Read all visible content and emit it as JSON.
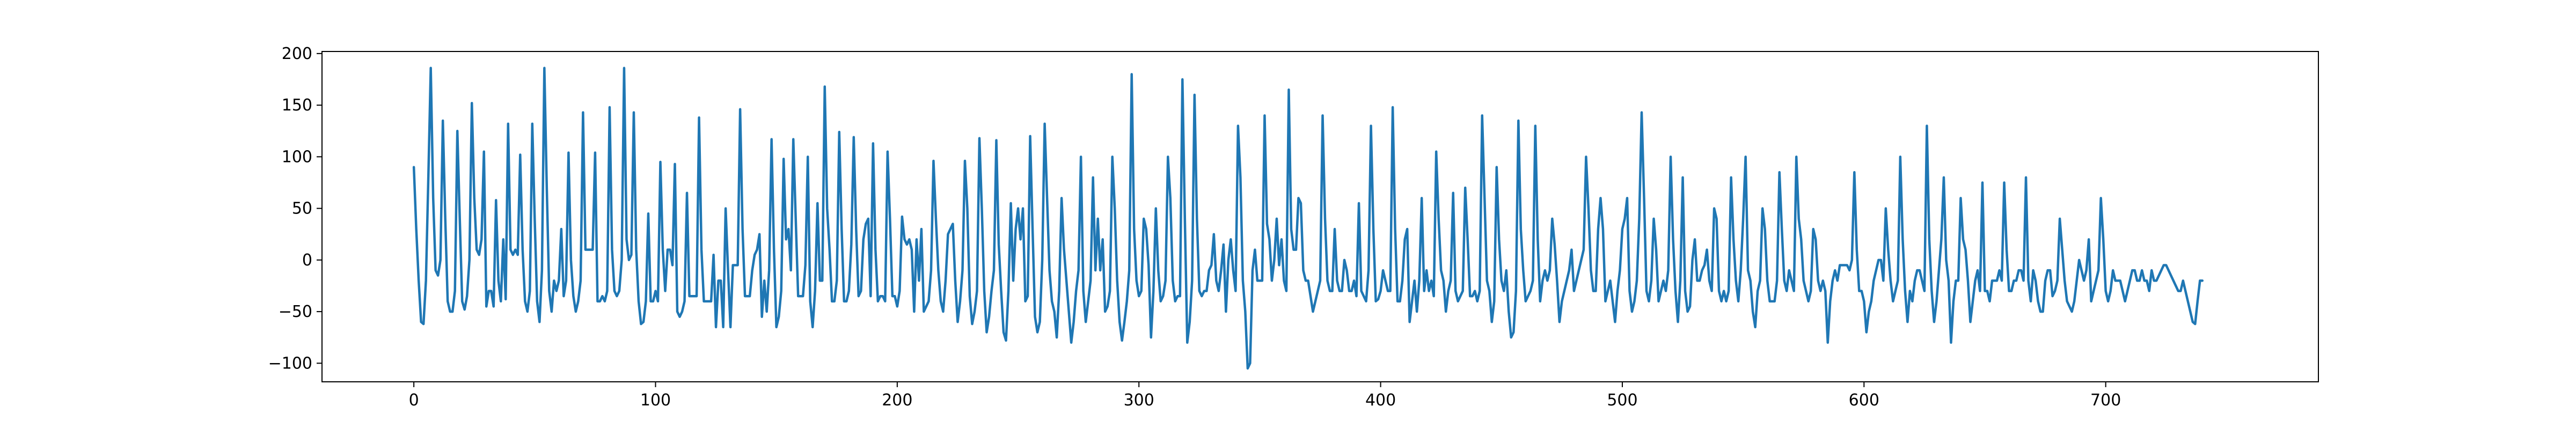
{
  "chart_data": {
    "type": "line",
    "title": "",
    "xlabel": "",
    "ylabel": "",
    "xlim": [
      -38,
      788
    ],
    "ylim": [
      -118,
      202
    ],
    "xticks": [
      0,
      100,
      200,
      300,
      400,
      500,
      600,
      700
    ],
    "yticks": [
      -100,
      -50,
      0,
      50,
      100,
      150,
      200
    ],
    "grid": false,
    "legend": "none",
    "line_color": "#1f77b4",
    "series": [
      {
        "x_start": 0,
        "x_step": 1,
        "values": [
          90,
          30,
          -20,
          -60,
          -62,
          -20,
          80,
          186,
          60,
          -10,
          -15,
          0,
          135,
          40,
          -40,
          -50,
          -50,
          -30,
          125,
          40,
          -40,
          -48,
          -35,
          0,
          152,
          60,
          10,
          5,
          20,
          105,
          -45,
          -30,
          -30,
          -45,
          58,
          -20,
          -40,
          20,
          -38,
          132,
          10,
          5,
          10,
          5,
          102,
          10,
          -40,
          -50,
          -30,
          132,
          40,
          -40,
          -60,
          -10,
          186,
          70,
          -30,
          -50,
          -20,
          -30,
          -20,
          30,
          -35,
          -20,
          104,
          0,
          -35,
          -50,
          -40,
          -20,
          143,
          10,
          10,
          10,
          10,
          104,
          -40,
          -40,
          -35,
          -40,
          -30,
          148,
          10,
          -30,
          -35,
          -30,
          0,
          186,
          20,
          0,
          5,
          143,
          10,
          -40,
          -62,
          -60,
          -40,
          45,
          -40,
          -40,
          -30,
          -40,
          95,
          10,
          -30,
          10,
          10,
          -5,
          93,
          -50,
          -55,
          -50,
          -40,
          65,
          -35,
          -35,
          -35,
          -35,
          138,
          10,
          -40,
          -40,
          -40,
          -40,
          5,
          -65,
          -20,
          -20,
          -65,
          50,
          -10,
          -65,
          -5,
          -5,
          -5,
          146,
          30,
          -35,
          -35,
          -35,
          -10,
          5,
          10,
          25,
          -55,
          -20,
          -50,
          -10,
          117,
          10,
          -65,
          -55,
          -30,
          98,
          20,
          30,
          -10,
          117,
          40,
          -35,
          -35,
          -35,
          -5,
          100,
          -40,
          -65,
          -30,
          55,
          -20,
          -20,
          168,
          50,
          10,
          -40,
          -40,
          -20,
          124,
          30,
          -40,
          -40,
          -30,
          15,
          119,
          30,
          -35,
          -30,
          20,
          35,
          40,
          -35,
          113,
          10,
          -40,
          -35,
          -35,
          -40,
          105,
          40,
          -35,
          -35,
          -45,
          -30,
          42,
          20,
          15,
          20,
          10,
          -50,
          20,
          -20,
          30,
          -50,
          -45,
          -40,
          -10,
          96,
          40,
          -10,
          -40,
          -50,
          -20,
          25,
          30,
          35,
          -20,
          -60,
          -40,
          -10,
          96,
          50,
          -35,
          -62,
          -50,
          -30,
          118,
          50,
          -30,
          -70,
          -55,
          -30,
          -10,
          116,
          15,
          -30,
          -70,
          -78,
          -30,
          55,
          -20,
          30,
          50,
          20,
          50,
          -40,
          -35,
          120,
          30,
          -55,
          -70,
          -60,
          0,
          132,
          60,
          -10,
          -40,
          -50,
          -75,
          -30,
          60,
          10,
          -20,
          -50,
          -80,
          -60,
          -30,
          -10,
          100,
          -30,
          -60,
          -40,
          -20,
          80,
          -10,
          40,
          -10,
          20,
          -50,
          -45,
          -30,
          100,
          50,
          -20,
          -60,
          -78,
          -60,
          -40,
          -10,
          180,
          30,
          -20,
          -35,
          -30,
          40,
          30,
          -5,
          -75,
          -30,
          50,
          -10,
          -40,
          -35,
          -20,
          100,
          60,
          -20,
          -40,
          -35,
          -35,
          175,
          40,
          -80,
          -60,
          -20,
          160,
          40,
          -30,
          -35,
          -30,
          -30,
          -10,
          -5,
          25,
          -20,
          -30,
          -10,
          15,
          -50,
          0,
          20,
          -10,
          -30,
          130,
          80,
          -20,
          -50,
          -105,
          -100,
          -10,
          10,
          -20,
          -20,
          -20,
          140,
          35,
          20,
          -20,
          0,
          40,
          -5,
          20,
          -20,
          -30,
          165,
          30,
          10,
          10,
          60,
          55,
          -10,
          -20,
          -20,
          -35,
          -50,
          -40,
          -30,
          -20,
          140,
          40,
          -20,
          -30,
          -30,
          30,
          -20,
          -30,
          -30,
          0,
          -10,
          -30,
          -30,
          -20,
          -35,
          55,
          -30,
          -35,
          -40,
          -10,
          130,
          30,
          -40,
          -38,
          -30,
          -10,
          -20,
          -30,
          -30,
          148,
          30,
          -40,
          -40,
          -20,
          20,
          30,
          -60,
          -40,
          -20,
          -50,
          -20,
          60,
          -30,
          -10,
          -30,
          -20,
          -35,
          105,
          40,
          -10,
          -20,
          -50,
          -30,
          -20,
          65,
          -30,
          -40,
          -35,
          -30,
          70,
          20,
          -35,
          -35,
          -30,
          -40,
          -30,
          140,
          60,
          -20,
          -30,
          -60,
          -40,
          90,
          20,
          -20,
          -30,
          -10,
          -50,
          -75,
          -70,
          -30,
          135,
          30,
          -10,
          -40,
          -35,
          -30,
          -20,
          130,
          20,
          -40,
          -20,
          -10,
          -20,
          -10,
          40,
          15,
          -20,
          -60,
          -40,
          -30,
          -20,
          -10,
          10,
          -30,
          -20,
          -10,
          0,
          10,
          100,
          50,
          -10,
          -30,
          -30,
          30,
          60,
          30,
          -40,
          -30,
          -20,
          -40,
          -60,
          -30,
          -10,
          30,
          40,
          60,
          -30,
          -50,
          -40,
          -20,
          40,
          143,
          60,
          -30,
          -40,
          -20,
          40,
          10,
          -40,
          -30,
          -20,
          -30,
          -10,
          100,
          20,
          -30,
          -60,
          -20,
          80,
          -30,
          -50,
          -45,
          0,
          20,
          -20,
          -20,
          -10,
          -5,
          10,
          -20,
          -30,
          50,
          40,
          -30,
          -40,
          -30,
          -40,
          -30,
          80,
          20,
          -20,
          -40,
          -10,
          40,
          100,
          -10,
          -20,
          -50,
          -65,
          -30,
          -20,
          50,
          30,
          -20,
          -40,
          -40,
          -40,
          -20,
          85,
          30,
          -20,
          -30,
          -10,
          -20,
          -30,
          100,
          40,
          20,
          -20,
          -30,
          -40,
          -30,
          30,
          20,
          -20,
          -30,
          -20,
          -30,
          -80,
          -40,
          -20,
          -10,
          -20,
          -5,
          -5,
          -5,
          -5,
          -10,
          0,
          85,
          10,
          -30,
          -30,
          -40,
          -70,
          -50,
          -40,
          -20,
          -10,
          0,
          0,
          -20,
          50,
          10,
          -20,
          -40,
          -30,
          -20,
          100,
          20,
          -30,
          -60,
          -30,
          -40,
          -20,
          -10,
          -10,
          -20,
          -30,
          130,
          20,
          -30,
          -60,
          -40,
          -10,
          20,
          80,
          0,
          -20,
          -80,
          -40,
          -20,
          -20,
          60,
          20,
          10,
          -20,
          -60,
          -40,
          -20,
          -10,
          -30,
          75,
          -30,
          -30,
          -40,
          -20,
          -20,
          -20,
          -10,
          -20,
          75,
          10,
          -30,
          -30,
          -20,
          -20,
          -10,
          -10,
          -20,
          80,
          -20,
          -40,
          -10,
          -20,
          -40,
          -50,
          -50,
          -20,
          -10,
          -10,
          -35,
          -30,
          -20,
          40,
          10,
          -20,
          -40,
          -45,
          -50,
          -40,
          -20,
          0,
          -10,
          -20,
          -10,
          20,
          -40,
          -30,
          -20,
          -10,
          60,
          20,
          -30,
          -40,
          -30,
          -10,
          -20,
          -20,
          -20,
          -30,
          -40,
          -30,
          -20,
          -10,
          -10,
          -20,
          -20,
          -10,
          -20,
          -20,
          -30,
          -10,
          -20,
          -20,
          -15,
          -10,
          -5,
          -5,
          -10,
          -15,
          -20,
          -25,
          -30,
          -30,
          -20,
          -30,
          -40,
          -50,
          -60,
          -62,
          -40,
          -20,
          -20
        ]
      }
    ]
  }
}
